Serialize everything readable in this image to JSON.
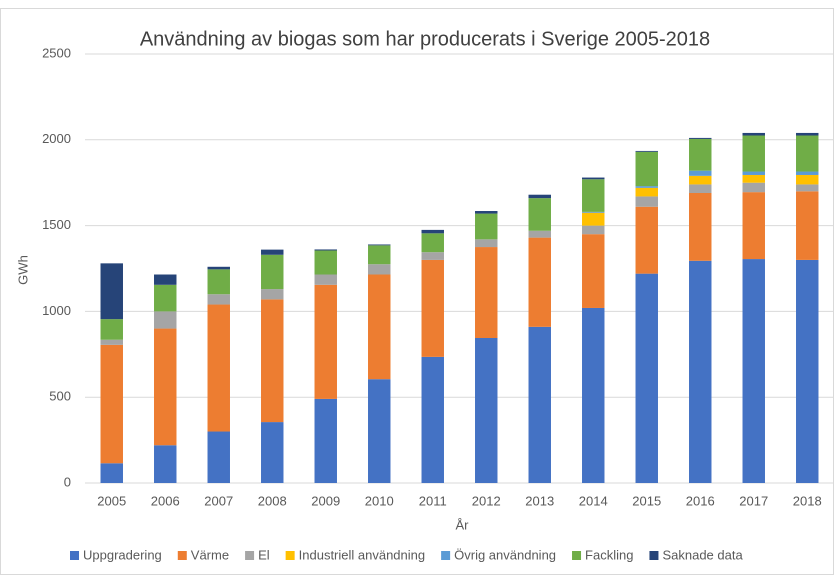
{
  "chart_data": {
    "type": "stacked_bar",
    "title": "Användning av biogas som har producerats i Sverige 2005-2018",
    "x_label": "År",
    "y_label": "GWh",
    "categories": [
      "2005",
      "2006",
      "2007",
      "2008",
      "2009",
      "2010",
      "2011",
      "2012",
      "2013",
      "2014",
      "2015",
      "2016",
      "2017",
      "2018"
    ],
    "series": [
      {
        "name": "Uppgradering",
        "color": "#4472c4",
        "values": [
          115,
          220,
          300,
          355,
          490,
          605,
          735,
          845,
          910,
          1020,
          1220,
          1295,
          1305,
          1300
        ]
      },
      {
        "name": "Värme",
        "color": "#ed7d31",
        "values": [
          690,
          680,
          740,
          715,
          665,
          610,
          565,
          530,
          520,
          430,
          390,
          395,
          390,
          400
        ]
      },
      {
        "name": "El",
        "color": "#a5a5a5",
        "values": [
          30,
          100,
          60,
          60,
          60,
          60,
          45,
          45,
          40,
          50,
          60,
          50,
          55,
          40
        ]
      },
      {
        "name": "Industriell användning",
        "color": "#ffc000",
        "values": [
          0,
          0,
          0,
          0,
          0,
          0,
          0,
          0,
          0,
          75,
          50,
          50,
          45,
          55
        ]
      },
      {
        "name": "Övrig användning",
        "color": "#5b9bd5",
        "values": [
          0,
          0,
          0,
          0,
          0,
          0,
          0,
          0,
          0,
          5,
          10,
          30,
          20,
          20
        ]
      },
      {
        "name": "Fackling",
        "color": "#70ad47",
        "values": [
          120,
          155,
          145,
          200,
          140,
          110,
          110,
          150,
          190,
          190,
          200,
          185,
          210,
          210
        ]
      },
      {
        "name": "Saknade data",
        "color": "#264478",
        "values": [
          325,
          60,
          15,
          30,
          6,
          5,
          20,
          15,
          20,
          10,
          5,
          6,
          15,
          15
        ]
      }
    ],
    "ylim": [
      0,
      2500
    ],
    "yticks": [
      0,
      500,
      1000,
      1500,
      2000,
      2500
    ],
    "grid": true,
    "legend": "bottom"
  }
}
